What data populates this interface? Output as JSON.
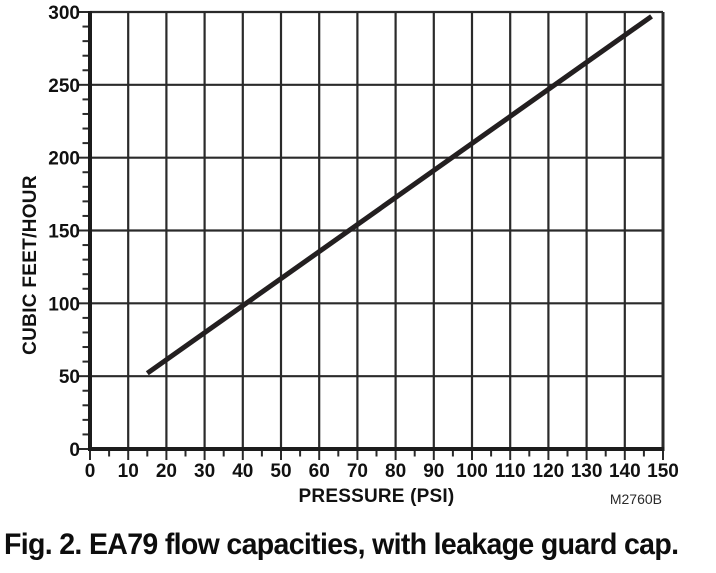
{
  "figure": {
    "caption": "Fig. 2. EA79 flow capacities, with leakage guard cap.",
    "code": "M2760B"
  },
  "chart_data": {
    "type": "line",
    "title": "",
    "xlabel": "PRESSURE (PSI)",
    "ylabel": "CUBIC FEET/HOUR",
    "xlim": [
      0,
      150
    ],
    "ylim": [
      0,
      300
    ],
    "xticks": [
      0,
      10,
      20,
      30,
      40,
      50,
      60,
      70,
      80,
      90,
      100,
      110,
      120,
      130,
      140,
      150
    ],
    "x_minor_tick_step": 5,
    "yticks": [
      0,
      50,
      100,
      150,
      200,
      250,
      300
    ],
    "y_minor_tick_step": 10,
    "grid": true,
    "legend": false,
    "series": [
      {
        "name": "EA79 flow capacity with leakage guard cap",
        "x": [
          15,
          147
        ],
        "y": [
          52,
          297
        ]
      }
    ],
    "colors": {
      "line": "#231f20",
      "grid": "#2a2a2a",
      "axis": "#1c1c1c",
      "text": "#111111"
    }
  }
}
